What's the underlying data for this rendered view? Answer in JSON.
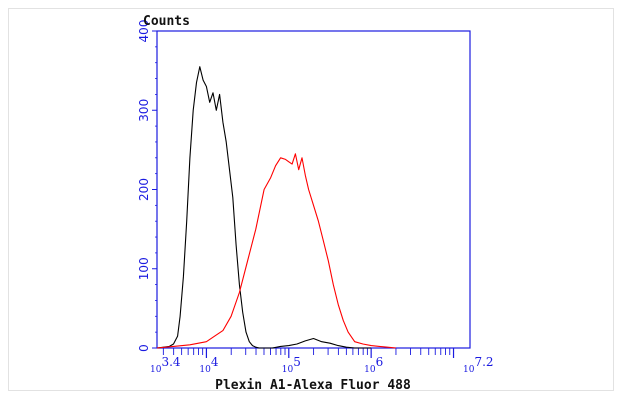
{
  "chart_data": {
    "type": "line",
    "title": "",
    "ylabel": "Counts",
    "xlabel": "Plexin A1-Alexa Fluor 488",
    "x_scale": "log10",
    "xlim": [
      3.4,
      7.2
    ],
    "ylim": [
      0,
      400
    ],
    "y_ticks": [
      0,
      100,
      200,
      300,
      400
    ],
    "x_ticks": [
      {
        "base": "10",
        "exp": "3.4",
        "value": 3.4
      },
      {
        "base": "10",
        "exp": "4",
        "value": 4
      },
      {
        "base": "10",
        "exp": "5",
        "value": 5
      },
      {
        "base": "10",
        "exp": "6",
        "value": 6
      },
      {
        "base": "10",
        "exp": "7.2",
        "value": 7.2
      }
    ],
    "grid": false,
    "legend": "none",
    "series": [
      {
        "color": "#000000",
        "x": [
          3.4,
          3.55,
          3.6,
          3.65,
          3.68,
          3.72,
          3.76,
          3.8,
          3.84,
          3.88,
          3.92,
          3.96,
          4.0,
          4.04,
          4.08,
          4.12,
          4.16,
          4.2,
          4.24,
          4.28,
          4.32,
          4.36,
          4.4,
          4.44,
          4.48,
          4.52,
          4.56,
          4.6,
          4.64,
          4.7,
          4.8,
          4.9,
          5.0,
          5.1,
          5.2,
          5.3,
          5.4,
          5.5,
          5.6,
          5.7,
          5.8,
          5.9,
          6.0
        ],
        "y": [
          0,
          2,
          5,
          15,
          40,
          90,
          160,
          240,
          300,
          335,
          355,
          338,
          330,
          310,
          322,
          300,
          320,
          285,
          260,
          225,
          190,
          130,
          80,
          45,
          20,
          8,
          3,
          1,
          0,
          0,
          0,
          2,
          3,
          5,
          9,
          12,
          8,
          6,
          3,
          1,
          0,
          0,
          0
        ]
      },
      {
        "color": "#ff0000",
        "x": [
          3.4,
          3.6,
          3.8,
          4.0,
          4.1,
          4.2,
          4.3,
          4.4,
          4.5,
          4.6,
          4.7,
          4.78,
          4.84,
          4.9,
          4.96,
          5.0,
          5.04,
          5.08,
          5.12,
          5.16,
          5.2,
          5.24,
          5.3,
          5.36,
          5.42,
          5.48,
          5.54,
          5.6,
          5.66,
          5.72,
          5.8,
          5.9,
          6.0,
          6.1,
          6.2,
          6.3
        ],
        "y": [
          0,
          2,
          4,
          8,
          15,
          22,
          40,
          70,
          110,
          150,
          200,
          215,
          230,
          240,
          238,
          235,
          232,
          245,
          225,
          240,
          218,
          200,
          180,
          160,
          135,
          110,
          80,
          55,
          35,
          20,
          8,
          5,
          3,
          2,
          1,
          0
        ]
      }
    ]
  }
}
